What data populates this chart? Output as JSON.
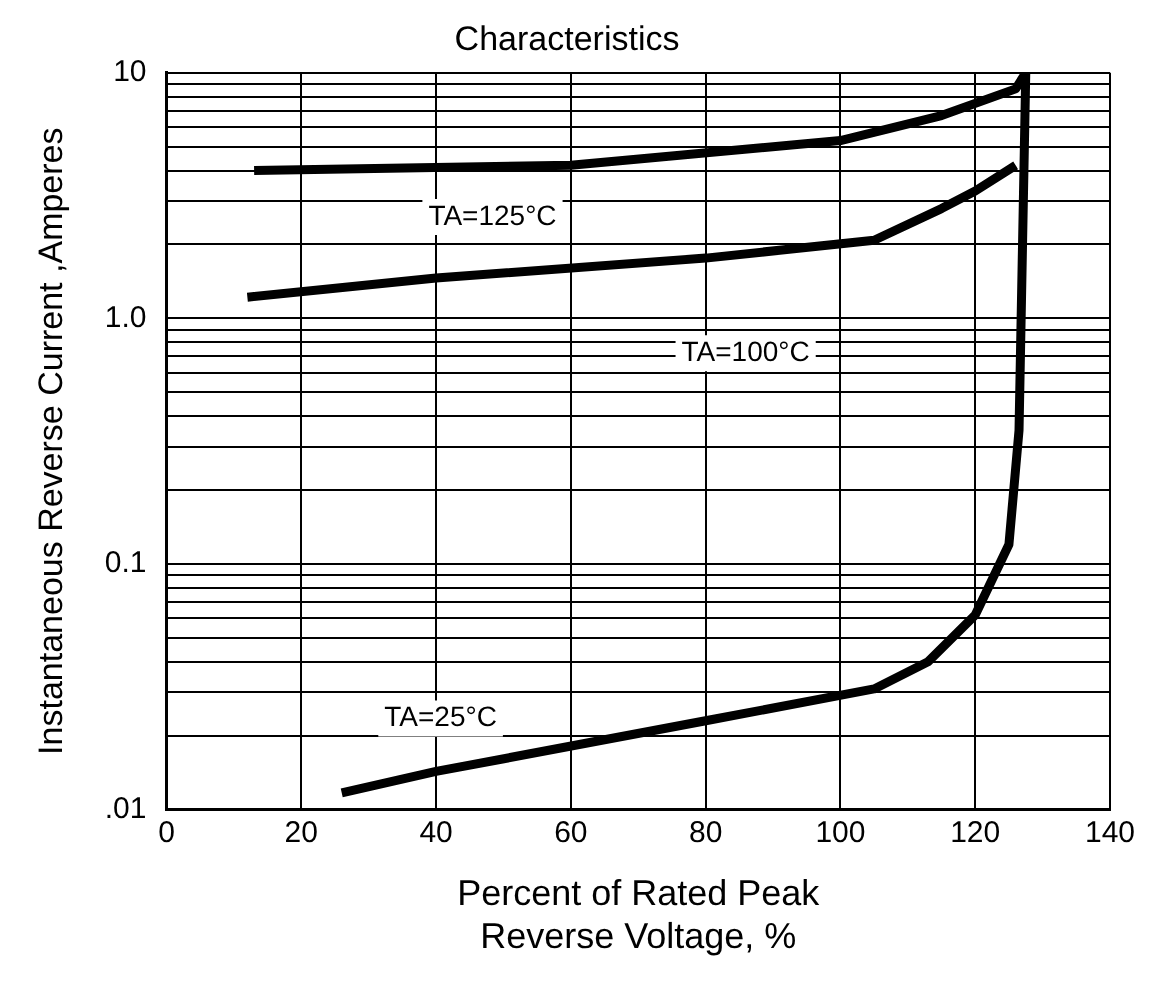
{
  "chart_data": {
    "type": "line",
    "title": "Characteristics",
    "xlabel": "Percent of Rated Peak\nReverse Voltage, %",
    "ylabel": "Instantaneous Reverse Current ,Amperes",
    "log": "y",
    "grid": true,
    "legend": false,
    "marker": "none",
    "line_style": "solid",
    "xlim": [
      0,
      140
    ],
    "xticks": [
      0,
      20,
      40,
      60,
      80,
      100,
      120,
      140
    ],
    "ylim": [
      0.01,
      10
    ],
    "yticks": [
      {
        "value": 0.01,
        "label": ".01"
      },
      {
        "value": 0.02,
        "label": null
      },
      {
        "value": 0.03,
        "label": null
      },
      {
        "value": 0.04,
        "label": null
      },
      {
        "value": 0.05,
        "label": null
      },
      {
        "value": 0.06,
        "label": null
      },
      {
        "value": 0.07,
        "label": null
      },
      {
        "value": 0.08,
        "label": null
      },
      {
        "value": 0.09,
        "label": null
      },
      0.1,
      {
        "value": 0.2,
        "label": null
      },
      {
        "value": 0.3,
        "label": null
      },
      {
        "value": 0.4,
        "label": null
      },
      {
        "value": 0.5,
        "label": null
      },
      {
        "value": 0.6,
        "label": null
      },
      {
        "value": 0.7,
        "label": null
      },
      {
        "value": 0.8,
        "label": null
      },
      {
        "value": 0.9,
        "label": null
      },
      {
        "value": 1,
        "label": "1.0"
      },
      {
        "value": 2,
        "label": null
      },
      {
        "value": 3,
        "label": null
      },
      {
        "value": 4,
        "label": null
      },
      {
        "value": 5,
        "label": null
      },
      {
        "value": 6,
        "label": null
      },
      {
        "value": 7,
        "label": null
      },
      {
        "value": 8,
        "label": null
      },
      {
        "value": 9,
        "label": null
      },
      10
    ],
    "series": [
      {
        "name": "TA=125°C",
        "color": "#000000",
        "x": [
          13,
          60,
          100,
          115,
          126,
          127.5
        ],
        "values": [
          4.0,
          4.2,
          5.3,
          6.7,
          8.6,
          10
        ]
      },
      {
        "name": "TA=100°C",
        "color": "#000000",
        "x": [
          12,
          40,
          80,
          105,
          115,
          120,
          126
        ],
        "values": [
          1.22,
          1.46,
          1.76,
          2.08,
          2.8,
          3.3,
          4.2
        ]
      },
      {
        "name": "TA=25°C",
        "color": "#000000",
        "x": [
          26,
          40,
          80,
          105,
          113,
          120,
          125,
          126.5,
          127.5
        ],
        "values": [
          0.0117,
          0.0143,
          0.023,
          0.031,
          0.04,
          0.062,
          0.12,
          0.35,
          10
        ]
      }
    ]
  }
}
